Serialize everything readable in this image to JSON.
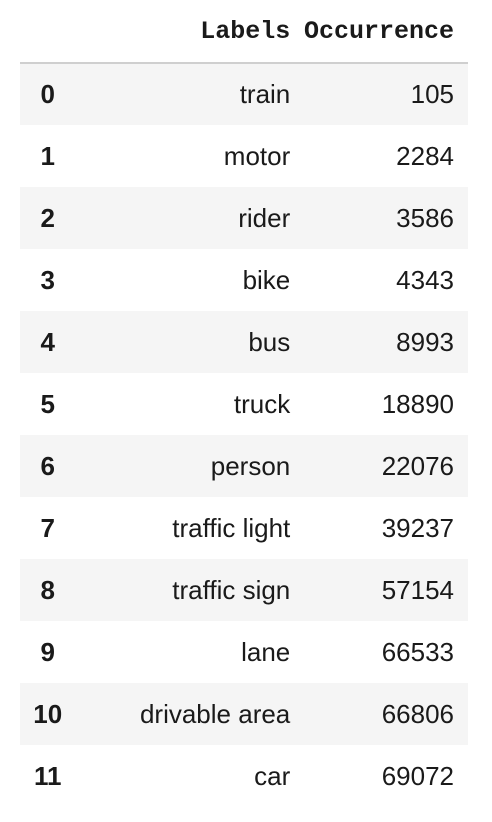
{
  "table": {
    "columns": [
      "",
      "Labels",
      "Occurrence"
    ],
    "rows": [
      {
        "index": "0",
        "label": "train",
        "occurrence": "105"
      },
      {
        "index": "1",
        "label": "motor",
        "occurrence": "2284"
      },
      {
        "index": "2",
        "label": "rider",
        "occurrence": "3586"
      },
      {
        "index": "3",
        "label": "bike",
        "occurrence": "4343"
      },
      {
        "index": "4",
        "label": "bus",
        "occurrence": "8993"
      },
      {
        "index": "5",
        "label": "truck",
        "occurrence": "18890"
      },
      {
        "index": "6",
        "label": "person",
        "occurrence": "22076"
      },
      {
        "index": "7",
        "label": "traffic light",
        "occurrence": "39237"
      },
      {
        "index": "8",
        "label": "traffic sign",
        "occurrence": "57154"
      },
      {
        "index": "9",
        "label": "lane",
        "occurrence": "66533"
      },
      {
        "index": "10",
        "label": "drivable area",
        "occurrence": "66806"
      },
      {
        "index": "11",
        "label": "car",
        "occurrence": "69072"
      }
    ]
  },
  "colors": {
    "stripe": "#f5f5f5",
    "header_rule": "#cfcfcf",
    "text": "#1a1a1a"
  }
}
